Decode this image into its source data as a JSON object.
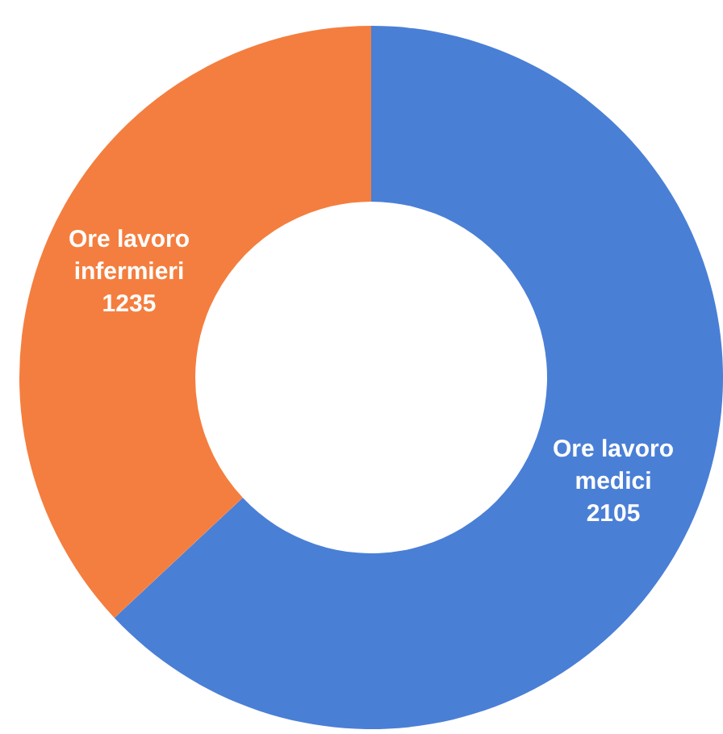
{
  "chart_data": {
    "type": "donut",
    "categories": [
      "Ore lavoro medici",
      "Ore lavoro infermieri"
    ],
    "values": [
      2105,
      1235
    ],
    "colors": [
      "#4a7fd6",
      "#f47e3f"
    ],
    "data_labels": true
  }
}
